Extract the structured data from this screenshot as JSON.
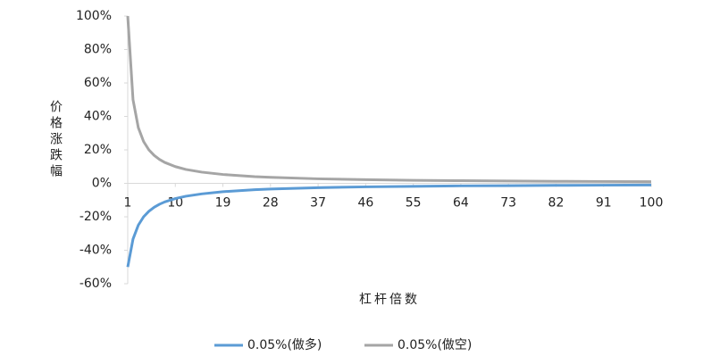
{
  "chart_data": {
    "type": "line",
    "x_label": "杠杆倍数",
    "y_label": "价格涨跌幅",
    "x": [
      1,
      2,
      3,
      4,
      5,
      6,
      7,
      8,
      10,
      12,
      15,
      19,
      25,
      28,
      37,
      46,
      55,
      64,
      73,
      82,
      91,
      100
    ],
    "series": [
      {
        "name": "0.05%(做多)",
        "color": "#5b9bd5",
        "values": [
          -50,
          -33.3,
          -25,
          -20,
          -16.7,
          -14.3,
          -12.5,
          -11.1,
          -9.1,
          -7.7,
          -6.3,
          -5,
          -3.8,
          -3.4,
          -2.6,
          -2.1,
          -1.8,
          -1.5,
          -1.4,
          -1.2,
          -1.1,
          -1.0
        ]
      },
      {
        "name": "0.05%(做空)",
        "color": "#a5a5a5",
        "values": [
          100,
          50,
          33.3,
          25,
          20,
          16.7,
          14.3,
          12.5,
          10,
          8.3,
          6.7,
          5.3,
          4,
          3.6,
          2.7,
          2.2,
          1.8,
          1.6,
          1.4,
          1.2,
          1.1,
          1.0
        ]
      }
    ],
    "xlim": [
      1,
      100
    ],
    "xticks": [
      1,
      10,
      19,
      28,
      37,
      46,
      55,
      64,
      73,
      82,
      91,
      100
    ],
    "ylim": [
      -60,
      100
    ],
    "yticks": [
      {
        "value": -60,
        "label": "-60%"
      },
      {
        "value": -40,
        "label": "-40%"
      },
      {
        "value": -20,
        "label": "-20%"
      },
      {
        "value": 0,
        "label": "0%"
      },
      {
        "value": 20,
        "label": "20%"
      },
      {
        "value": 40,
        "label": "40%"
      },
      {
        "value": 60,
        "label": "60%"
      },
      {
        "value": 80,
        "label": "80%"
      },
      {
        "value": 100,
        "label": "100%"
      }
    ],
    "legend": "bottom"
  }
}
